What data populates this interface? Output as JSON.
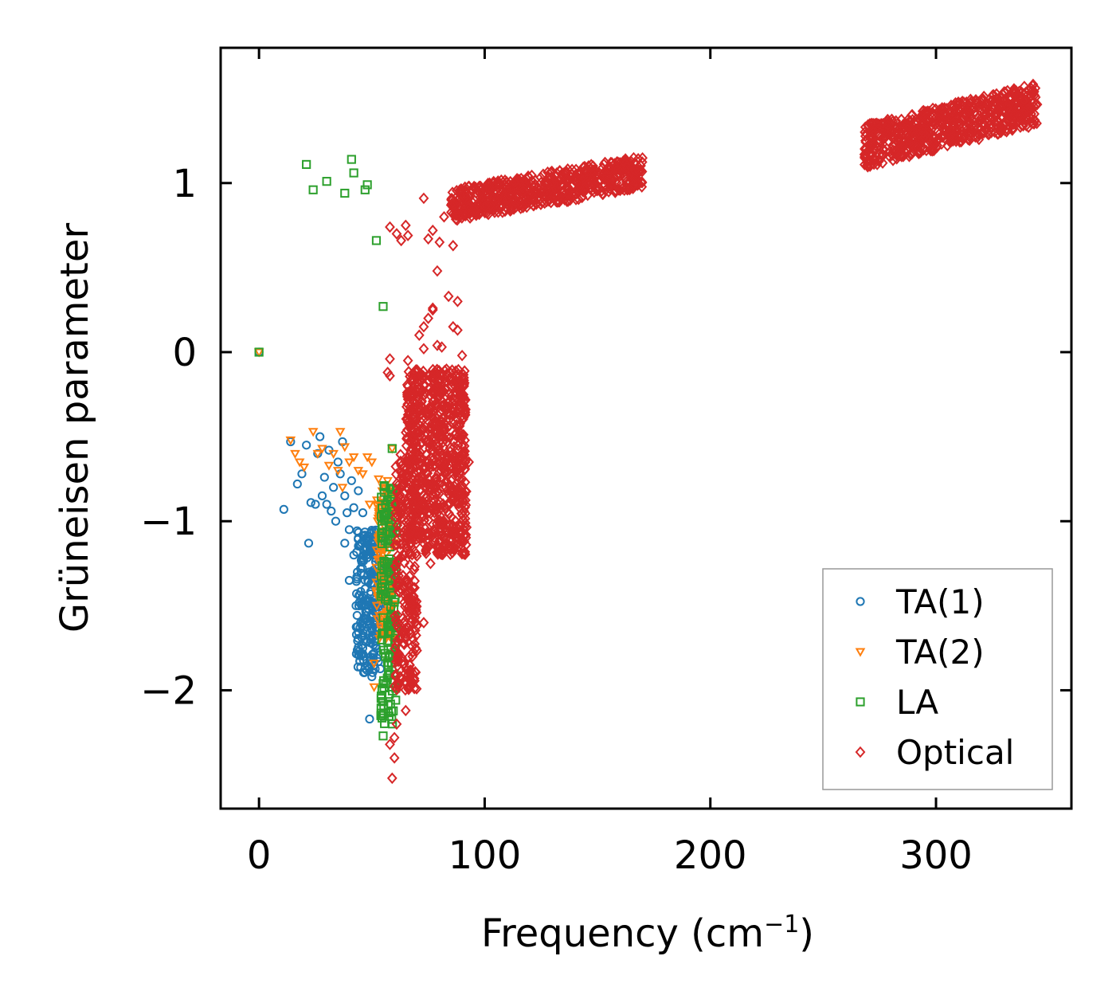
{
  "chart_data": {
    "type": "scatter",
    "title": "",
    "xlabel": "Frequency (cm",
    "xlabel_sup": "−1",
    "xlabel_end": ")",
    "ylabel": "Grüneisen parameter",
    "xlim": [
      -17,
      360
    ],
    "ylim": [
      -2.7,
      1.8
    ],
    "x_ticks": [
      0,
      100,
      200,
      300
    ],
    "x_tick_labels": [
      "0",
      "100",
      "200",
      "300"
    ],
    "y_ticks": [
      1,
      0,
      -1,
      -2
    ],
    "y_tick_labels": [
      "1",
      "0",
      "−1",
      "−2"
    ],
    "legend_position": "lower-right",
    "series": [
      {
        "name": "TA(1)",
        "marker": "circle",
        "color": "#1f77b4",
        "points": [
          [
            0,
            0
          ],
          [
            11,
            -0.93
          ],
          [
            14,
            -0.53
          ],
          [
            17,
            -0.78
          ],
          [
            19,
            -0.72
          ],
          [
            21,
            -0.55
          ],
          [
            22,
            -1.13
          ],
          [
            23,
            -0.89
          ],
          [
            25,
            -0.9
          ],
          [
            26,
            -0.6
          ],
          [
            27,
            -0.5
          ],
          [
            28,
            -0.85
          ],
          [
            29,
            -0.74
          ],
          [
            30,
            -0.9
          ],
          [
            31,
            -0.58
          ],
          [
            32,
            -0.94
          ],
          [
            33,
            -0.8
          ],
          [
            34,
            -1.0
          ],
          [
            35,
            -0.65
          ],
          [
            36,
            -0.72
          ],
          [
            37,
            -0.53
          ],
          [
            38,
            -0.85
          ],
          [
            38,
            -1.13
          ],
          [
            39,
            -0.95
          ],
          [
            40,
            -1.05
          ],
          [
            40,
            -1.35
          ],
          [
            41,
            -0.76
          ],
          [
            42,
            -1.2
          ],
          [
            42,
            -0.92
          ],
          [
            43,
            -1.5
          ],
          [
            44,
            -1.1
          ],
          [
            44,
            -0.82
          ],
          [
            45,
            -1.6
          ],
          [
            45,
            -1.28
          ],
          [
            46,
            -1.75
          ],
          [
            46,
            -0.95
          ],
          [
            47,
            -1.4
          ],
          [
            47,
            -1.87
          ],
          [
            48,
            -1.1
          ],
          [
            48,
            -1.65
          ],
          [
            49,
            -1.3
          ],
          [
            49,
            -2.17
          ],
          [
            50,
            -1.92
          ],
          [
            50,
            -1.5
          ],
          [
            51,
            -1.2
          ],
          [
            51,
            -1.78
          ],
          [
            52,
            -1.4
          ],
          [
            52,
            -1.6
          ],
          [
            53,
            -1.3
          ],
          [
            54,
            -1.5
          ]
        ],
        "clusters": [
          {
            "x": [
              43,
              54
            ],
            "y": [
              -1.9,
              -1.05
            ],
            "n": 220
          }
        ]
      },
      {
        "name": "TA(2)",
        "marker": "triangle-down",
        "color": "#ff7f0e",
        "points": [
          [
            0,
            0
          ],
          [
            14,
            -0.52
          ],
          [
            16,
            -0.6
          ],
          [
            18,
            -0.65
          ],
          [
            20,
            -0.68
          ],
          [
            24,
            -0.47
          ],
          [
            26,
            -0.6
          ],
          [
            28,
            -0.57
          ],
          [
            31,
            -0.67
          ],
          [
            33,
            -0.6
          ],
          [
            35,
            -0.7
          ],
          [
            36,
            -0.47
          ],
          [
            37,
            -0.8
          ],
          [
            38,
            -0.56
          ],
          [
            40,
            -0.65
          ],
          [
            42,
            -0.62
          ],
          [
            44,
            -0.7
          ],
          [
            46,
            -0.72
          ],
          [
            48,
            -0.62
          ],
          [
            49,
            -0.9
          ],
          [
            50,
            -0.65
          ],
          [
            51,
            -1.84
          ],
          [
            51,
            -1.98
          ],
          [
            52,
            -0.9
          ],
          [
            53,
            -0.75
          ],
          [
            55,
            -0.8
          ],
          [
            56,
            -1.6
          ],
          [
            57,
            -0.76
          ],
          [
            58,
            -0.82
          ],
          [
            59,
            -0.57
          ]
        ],
        "clusters": [
          {
            "x": [
              52,
              60
            ],
            "y": [
              -1.7,
              -0.8
            ],
            "n": 160
          }
        ]
      },
      {
        "name": "LA",
        "marker": "square",
        "color": "#2ca02c",
        "points": [
          [
            0,
            0
          ],
          [
            21,
            1.11
          ],
          [
            24,
            0.96
          ],
          [
            30,
            1.01
          ],
          [
            38,
            0.94
          ],
          [
            41,
            1.14
          ],
          [
            42,
            1.06
          ],
          [
            47,
            0.96
          ],
          [
            48,
            0.99
          ],
          [
            52,
            0.66
          ],
          [
            55,
            0.27
          ],
          [
            59,
            -0.57
          ],
          [
            55,
            -2.27
          ],
          [
            54,
            -2.15
          ],
          [
            55,
            -1.96
          ],
          [
            56,
            -1.8
          ],
          [
            57,
            -1.6
          ]
        ],
        "clusters": [
          {
            "x": [
              54,
              61
            ],
            "y": [
              -2.2,
              -0.75
            ],
            "n": 150
          }
        ]
      },
      {
        "name": "Optical",
        "marker": "diamond",
        "color": "#d62728",
        "points": [
          [
            58,
            0.74
          ],
          [
            61,
            0.7
          ],
          [
            63,
            0.66
          ],
          [
            65,
            0.75
          ],
          [
            66,
            0.69
          ],
          [
            73,
            0.91
          ],
          [
            75,
            0.67
          ],
          [
            77,
            0.72
          ],
          [
            79,
            0.48
          ],
          [
            80,
            0.65
          ],
          [
            82,
            0.8
          ],
          [
            86,
            0.63
          ],
          [
            84,
            0.33
          ],
          [
            88,
            0.3
          ],
          [
            77,
            0.25
          ],
          [
            75,
            0.2
          ],
          [
            73,
            0.15
          ],
          [
            71,
            0.1
          ],
          [
            73,
            0.02
          ],
          [
            81,
            0.03
          ],
          [
            86,
            0.15
          ],
          [
            88,
            0.13
          ],
          [
            58,
            -0.04
          ],
          [
            57,
            -0.12
          ],
          [
            58,
            -0.14
          ],
          [
            66,
            -0.05
          ],
          [
            77,
            0.26
          ],
          [
            90,
            -0.02
          ],
          [
            79,
            0.04
          ],
          [
            60,
            -2.4
          ],
          [
            59,
            -2.52
          ],
          [
            60,
            -2.28
          ],
          [
            58,
            -2.32
          ],
          [
            61,
            -2.2
          ],
          [
            65,
            -2.12
          ],
          [
            67,
            -1.92
          ],
          [
            65,
            -1.95
          ],
          [
            68,
            -1.8
          ],
          [
            70,
            -1.62
          ],
          [
            73,
            -1.6
          ],
          [
            76,
            -1.25
          ],
          [
            78,
            -1.12
          ],
          [
            82,
            -1.0
          ],
          [
            90,
            -0.75
          ],
          [
            93,
            -0.65
          ]
        ],
        "clusters": [
          {
            "x": [
              60,
              70
            ],
            "y": [
              -2.0,
              -0.6
            ],
            "n": 260
          },
          {
            "x": [
              65,
              92
            ],
            "y": [
              -1.2,
              -0.1
            ],
            "n": 800
          },
          {
            "x": [
              85,
              170
            ],
            "y": [
              0.72,
              1.15
            ],
            "n": 650,
            "trend": "rise"
          },
          {
            "x": [
              268,
              345
            ],
            "y": [
              1.02,
              1.58
            ],
            "n": 700,
            "trend": "rise"
          }
        ]
      }
    ]
  }
}
